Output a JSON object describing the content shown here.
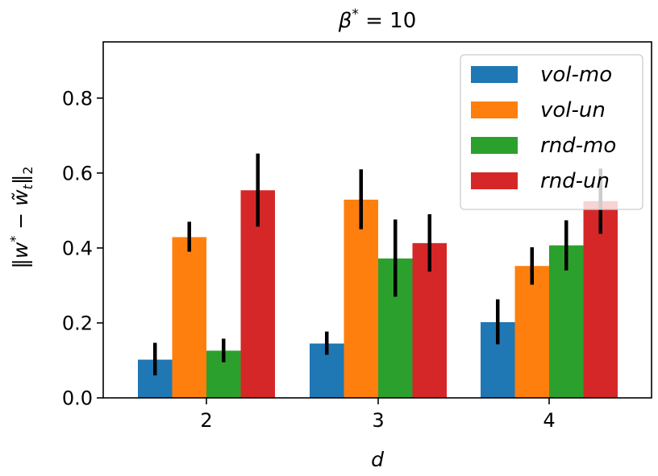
{
  "chart_data": {
    "type": "bar",
    "title": "β* = 10",
    "title_main": "β",
    "title_sup": "*",
    "title_rest": " = 10",
    "xlabel": "d",
    "ylabel": "||w* − w̃t||2",
    "ylabel_parts": {
      "open": "‖",
      "w": "w",
      "star": "*",
      "minus": " − ",
      "wt": "w̃",
      "t": "t",
      "close": "‖",
      "sub2": "2"
    },
    "categories": [
      "2",
      "3",
      "4"
    ],
    "ylim": [
      0.0,
      0.95
    ],
    "yticks": [
      0.0,
      0.2,
      0.4,
      0.6,
      0.8
    ],
    "ytick_labels": [
      "0.0",
      "0.2",
      "0.4",
      "0.6",
      "0.8"
    ],
    "legend_position": "top-right",
    "series": [
      {
        "name": "vol-mo",
        "color": "#1f77b4",
        "values": [
          0.102,
          0.145,
          0.202
        ],
        "err_low": [
          0.06,
          0.115,
          0.143
        ],
        "err_high": [
          0.147,
          0.177,
          0.263
        ]
      },
      {
        "name": "vol-un",
        "color": "#ff7f0e",
        "values": [
          0.429,
          0.529,
          0.352
        ],
        "err_low": [
          0.39,
          0.45,
          0.302
        ],
        "err_high": [
          0.47,
          0.61,
          0.402
        ]
      },
      {
        "name": "rnd-mo",
        "color": "#2ca02c",
        "values": [
          0.126,
          0.372,
          0.407
        ],
        "err_low": [
          0.095,
          0.27,
          0.34
        ],
        "err_high": [
          0.158,
          0.476,
          0.474
        ]
      },
      {
        "name": "rnd-un",
        "color": "#d62728",
        "values": [
          0.554,
          0.413,
          0.525
        ],
        "err_low": [
          0.457,
          0.337,
          0.438
        ],
        "err_high": [
          0.652,
          0.49,
          0.612
        ]
      }
    ]
  }
}
